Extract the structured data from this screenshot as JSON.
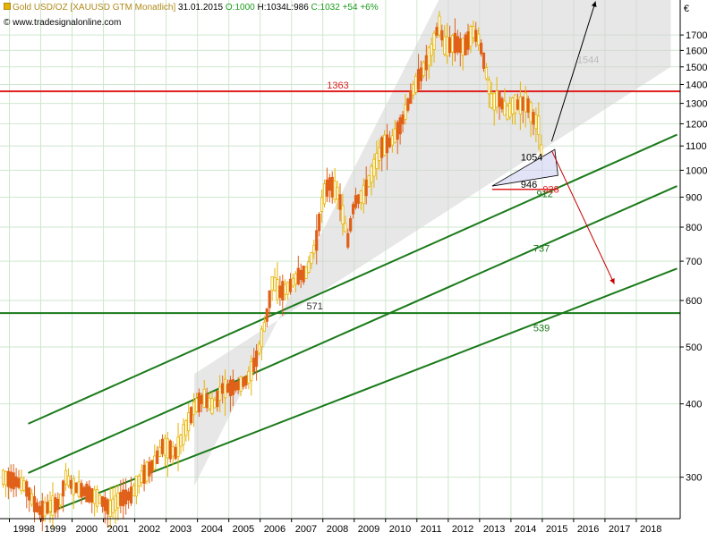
{
  "header": {
    "symbol": "Gold USD/OZ [XAUUSD GTM  Monatlich]",
    "date": "31.01.2015",
    "open": "O:1000",
    "high": "H:1034",
    "low": "L:986",
    "close": "C:1032",
    "change": "+54",
    "change_pct": "+6%",
    "source": "© www.tradesignalonline.com",
    "currency": "€"
  },
  "colors": {
    "candle_up": "#e6b400",
    "candle_down": "#e0601a",
    "resistance": "#e02020",
    "channel": "#1a7a1a",
    "grid": "#cfe6cf",
    "arrow_down": "#c80000",
    "arrow_up": "#000000",
    "shade": "#d4d4d4"
  },
  "chart_data": {
    "type": "candlestick",
    "scale": "log",
    "ylim": [
      255,
      1950
    ],
    "yticks": [
      300,
      400,
      500,
      600,
      700,
      800,
      900,
      1000,
      1100,
      1200,
      1300,
      1400,
      1500,
      1600,
      1700
    ],
    "xlim": [
      1997.7,
      2019.4
    ],
    "xticks": [
      1998,
      1999,
      2000,
      2001,
      2002,
      2003,
      2004,
      2005,
      2006,
      2007,
      2008,
      2009,
      2010,
      2011,
      2012,
      2013,
      2014,
      2015,
      2016,
      2017,
      2018
    ],
    "grid": true,
    "price_path": [
      [
        1997.8,
        300
      ],
      [
        1998.2,
        295
      ],
      [
        1998.5,
        290
      ],
      [
        1998.8,
        270
      ],
      [
        1999.0,
        262
      ],
      [
        1999.3,
        268
      ],
      [
        1999.6,
        270
      ],
      [
        1999.8,
        300
      ],
      [
        2000.0,
        290
      ],
      [
        2000.3,
        285
      ],
      [
        2000.6,
        280
      ],
      [
        2000.9,
        275
      ],
      [
        2001.2,
        265
      ],
      [
        2001.5,
        275
      ],
      [
        2001.9,
        280
      ],
      [
        2002.2,
        300
      ],
      [
        2002.6,
        315
      ],
      [
        2002.9,
        340
      ],
      [
        2003.3,
        330
      ],
      [
        2003.6,
        360
      ],
      [
        2003.9,
        395
      ],
      [
        2004.2,
        410
      ],
      [
        2004.5,
        395
      ],
      [
        2004.8,
        425
      ],
      [
        2005.0,
        425
      ],
      [
        2005.3,
        430
      ],
      [
        2005.6,
        440
      ],
      [
        2005.9,
        480
      ],
      [
        2006.2,
        560
      ],
      [
        2006.4,
        650
      ],
      [
        2006.6,
        620
      ],
      [
        2006.9,
        630
      ],
      [
        2007.2,
        660
      ],
      [
        2007.5,
        670
      ],
      [
        2007.8,
        760
      ],
      [
        2008.0,
        900
      ],
      [
        2008.2,
        950
      ],
      [
        2008.5,
        910
      ],
      [
        2008.8,
        760
      ],
      [
        2009.0,
        880
      ],
      [
        2009.3,
        910
      ],
      [
        2009.6,
        1000
      ],
      [
        2009.9,
        1100
      ],
      [
        2010.2,
        1120
      ],
      [
        2010.5,
        1200
      ],
      [
        2010.9,
        1380
      ],
      [
        2011.2,
        1480
      ],
      [
        2011.5,
        1620
      ],
      [
        2011.7,
        1780
      ],
      [
        2011.9,
        1620
      ],
      [
        2012.2,
        1650
      ],
      [
        2012.5,
        1620
      ],
      [
        2012.8,
        1720
      ],
      [
        2013.0,
        1660
      ],
      [
        2013.2,
        1480
      ],
      [
        2013.4,
        1300
      ],
      [
        2013.6,
        1330
      ],
      [
        2013.9,
        1250
      ],
      [
        2014.1,
        1300
      ],
      [
        2014.3,
        1290
      ],
      [
        2014.5,
        1310
      ],
      [
        2014.7,
        1230
      ],
      [
        2014.9,
        1190
      ],
      [
        2015.0,
        1032
      ]
    ],
    "lines": [
      {
        "label": "1363",
        "value": 1363
      },
      {
        "label": "571",
        "value": 571
      }
    ],
    "channel_labels": [
      {
        "label": "737",
        "x": 2015.0,
        "value": 737
      },
      {
        "label": "539",
        "x": 2015.0,
        "value": 539
      },
      {
        "label": "912",
        "x": 2015.1,
        "value": 912
      },
      {
        "label": "928",
        "x": 2015.3,
        "value": 928
      },
      {
        "label": "946",
        "x": 2014.6,
        "value": 946
      },
      {
        "label": "1054",
        "x": 2014.6,
        "value": 1054
      },
      {
        "label": "1544",
        "x": 2016.4,
        "value": 1544
      }
    ]
  }
}
